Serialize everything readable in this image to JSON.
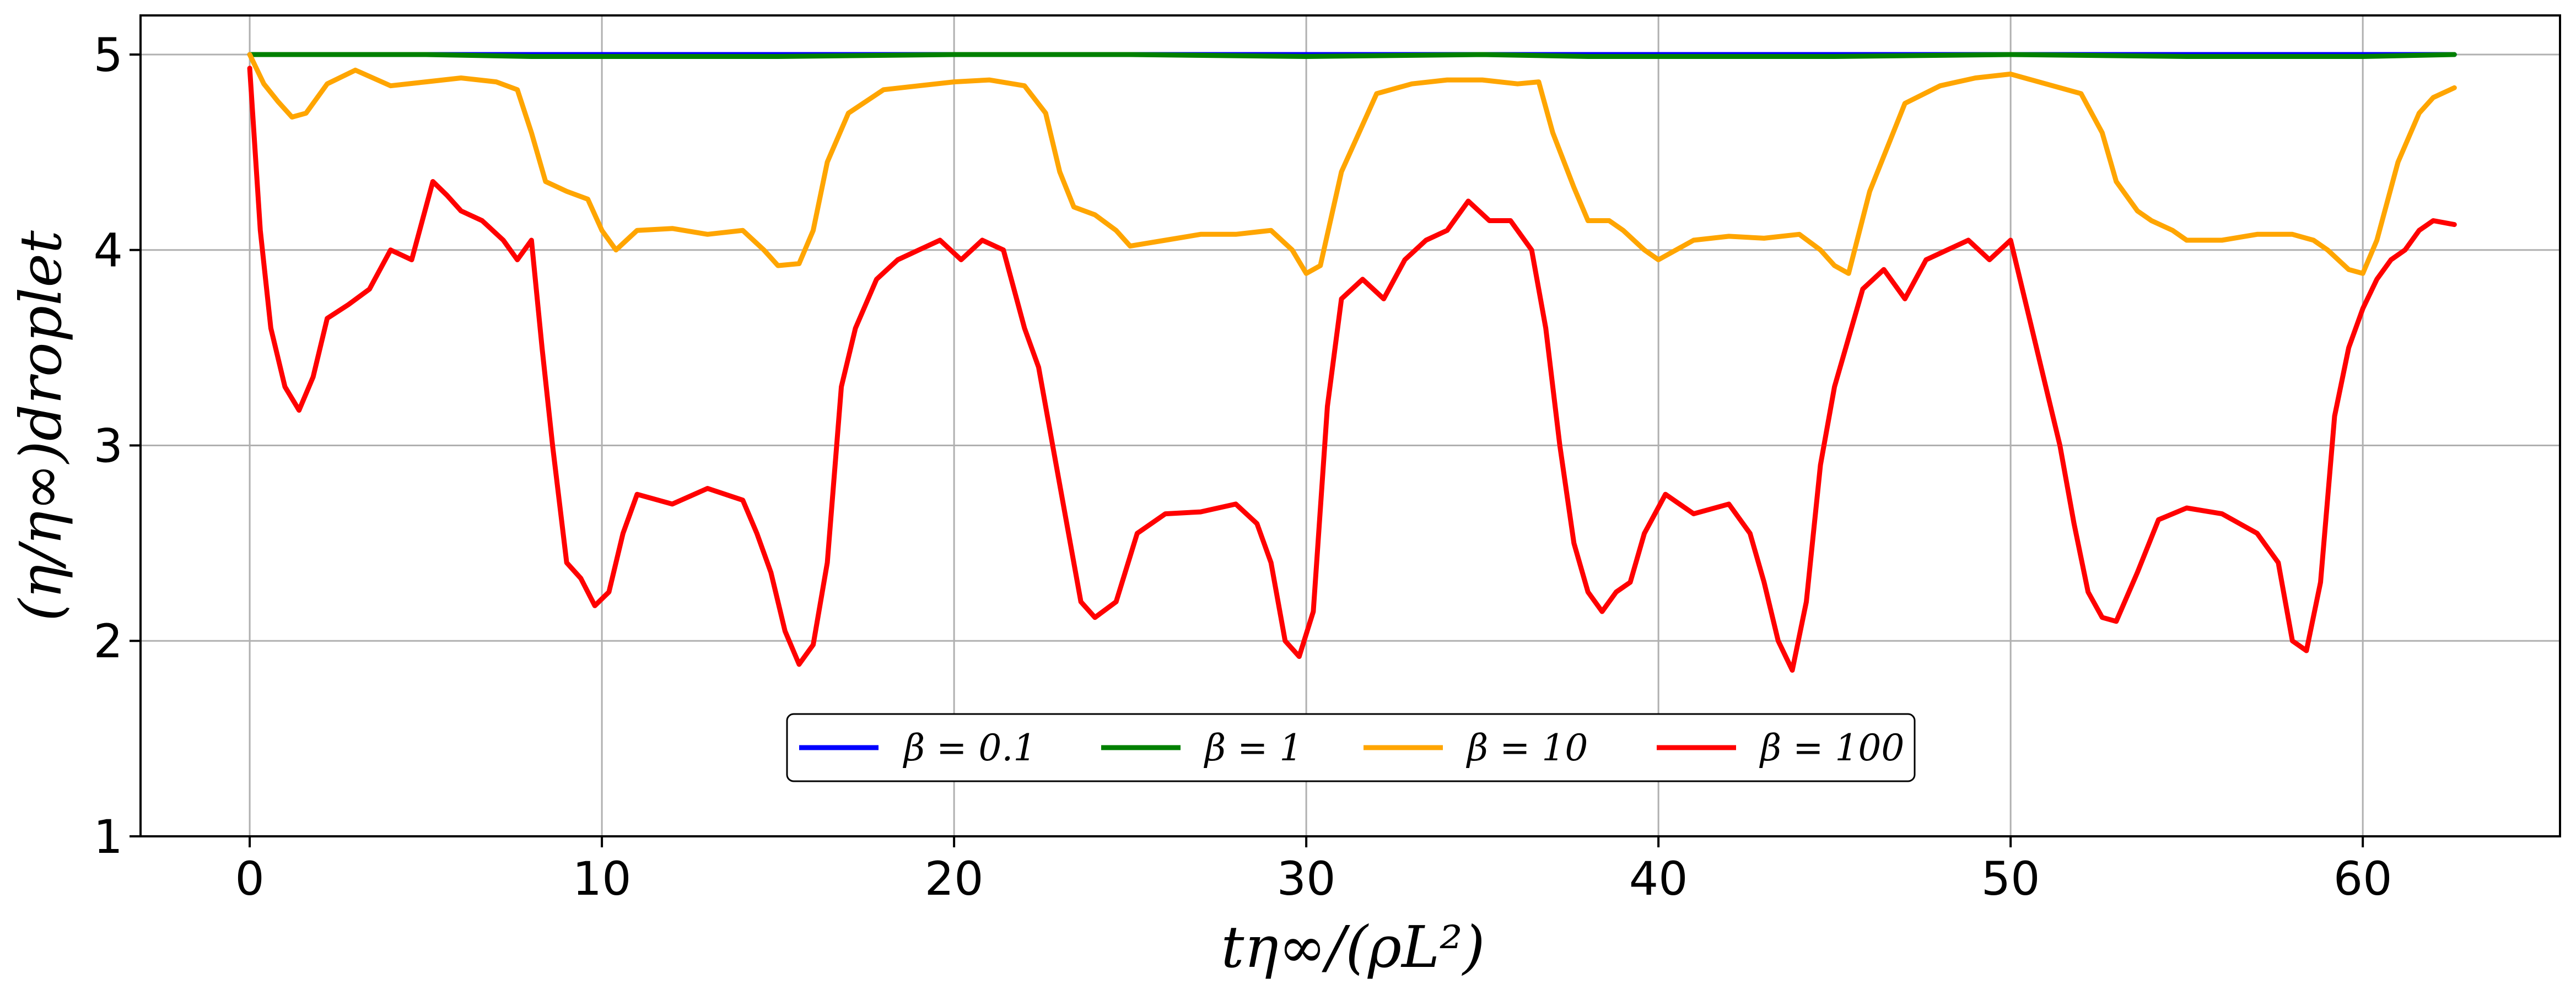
{
  "chart_data": {
    "type": "line",
    "title": "",
    "xlabel": "tη∞/(ρL²)",
    "ylabel": "(η/η∞)droplet",
    "xlim": [
      -3.1,
      65.6
    ],
    "ylim": [
      1,
      5.2
    ],
    "xticks": [
      0,
      10,
      20,
      30,
      40,
      50,
      60
    ],
    "yticks": [
      1,
      2,
      3,
      4,
      5
    ],
    "xtick_labels": [
      "0",
      "10",
      "20",
      "30",
      "40",
      "50",
      "60"
    ],
    "ytick_labels": [
      "1",
      "2",
      "3",
      "4",
      "5"
    ],
    "grid": true,
    "legend_position": "lower-center",
    "series": [
      {
        "name": "β = 0.1",
        "color": "#0000ff",
        "x": [
          0,
          5,
          10,
          15,
          20,
          25,
          30,
          35,
          40,
          45,
          50,
          55,
          60,
          62.6
        ],
        "y": [
          5.0,
          5.0,
          5.0,
          5.0,
          5.0,
          5.0,
          5.0,
          5.0,
          5.0,
          5.0,
          5.0,
          5.0,
          5.0,
          5.0
        ]
      },
      {
        "name": "β = 1",
        "color": "#008000",
        "x": [
          0,
          5,
          8,
          10,
          15,
          20,
          25,
          30,
          35,
          38,
          40,
          45,
          50,
          55,
          60,
          62.6
        ],
        "y": [
          5.0,
          5.0,
          4.99,
          4.99,
          4.99,
          5.0,
          5.0,
          4.99,
          5.0,
          4.99,
          4.99,
          4.99,
          5.0,
          4.99,
          4.99,
          5.0
        ]
      },
      {
        "name": "β = 10",
        "color": "#ffa500",
        "x": [
          0,
          0.4,
          0.8,
          1.2,
          1.6,
          2.2,
          3.0,
          4.0,
          5.0,
          6.0,
          7.0,
          7.6,
          8.0,
          8.4,
          9.0,
          9.6,
          10.0,
          10.4,
          11.0,
          12.0,
          13.0,
          14.0,
          14.6,
          15.0,
          15.6,
          16.0,
          16.4,
          17.0,
          18.0,
          19.0,
          20.0,
          21.0,
          22.0,
          22.6,
          23.0,
          23.4,
          24.0,
          24.6,
          25.0,
          26.0,
          27.0,
          28.0,
          29.0,
          29.6,
          30.0,
          30.4,
          31.0,
          32.0,
          33.0,
          34.0,
          35.0,
          36.0,
          36.6,
          37.0,
          37.6,
          38.0,
          38.6,
          39.0,
          39.6,
          40.0,
          41.0,
          42.0,
          43.0,
          44.0,
          44.6,
          45.0,
          45.4,
          46.0,
          47.0,
          48.0,
          49.0,
          50.0,
          51.0,
          52.0,
          52.6,
          53.0,
          53.6,
          54.0,
          54.6,
          55.0,
          56.0,
          57.0,
          58.0,
          58.6,
          59.0,
          59.6,
          60.0,
          60.4,
          61.0,
          61.6,
          62.0,
          62.6
        ],
        "y": [
          5.0,
          4.85,
          4.76,
          4.68,
          4.7,
          4.85,
          4.92,
          4.84,
          4.86,
          4.88,
          4.86,
          4.82,
          4.6,
          4.35,
          4.3,
          4.26,
          4.1,
          4.0,
          4.1,
          4.11,
          4.08,
          4.1,
          4.0,
          3.92,
          3.93,
          4.1,
          4.45,
          4.7,
          4.82,
          4.84,
          4.86,
          4.87,
          4.84,
          4.7,
          4.4,
          4.22,
          4.18,
          4.1,
          4.02,
          4.05,
          4.08,
          4.08,
          4.1,
          4.0,
          3.88,
          3.92,
          4.4,
          4.8,
          4.85,
          4.87,
          4.87,
          4.85,
          4.86,
          4.6,
          4.32,
          4.15,
          4.15,
          4.1,
          4.0,
          3.95,
          4.05,
          4.07,
          4.06,
          4.08,
          4.0,
          3.92,
          3.88,
          4.3,
          4.75,
          4.84,
          4.88,
          4.9,
          4.85,
          4.8,
          4.6,
          4.35,
          4.2,
          4.15,
          4.1,
          4.05,
          4.05,
          4.08,
          4.08,
          4.05,
          4.0,
          3.9,
          3.88,
          4.05,
          4.45,
          4.7,
          4.78,
          4.83
        ]
      },
      {
        "name": "β = 100",
        "color": "#ff0000",
        "x": [
          0,
          0.3,
          0.6,
          1.0,
          1.4,
          1.8,
          2.2,
          2.8,
          3.4,
          4.0,
          4.6,
          5.2,
          5.6,
          6.0,
          6.6,
          7.2,
          7.6,
          8.0,
          8.3,
          8.6,
          9.0,
          9.4,
          9.8,
          10.2,
          10.6,
          11.0,
          12.0,
          13.0,
          14.0,
          14.4,
          14.8,
          15.2,
          15.6,
          16.0,
          16.4,
          16.8,
          17.2,
          17.8,
          18.4,
          19.0,
          19.6,
          20.2,
          20.8,
          21.4,
          22.0,
          22.4,
          22.8,
          23.2,
          23.6,
          24.0,
          24.6,
          25.2,
          26.0,
          27.0,
          28.0,
          28.6,
          29.0,
          29.4,
          29.8,
          30.2,
          30.6,
          31.0,
          31.6,
          32.2,
          32.8,
          33.4,
          34.0,
          34.6,
          35.2,
          35.8,
          36.4,
          36.8,
          37.2,
          37.6,
          38.0,
          38.4,
          38.8,
          39.2,
          39.6,
          40.2,
          41.0,
          42.0,
          42.6,
          43.0,
          43.4,
          43.8,
          44.2,
          44.6,
          45.0,
          45.4,
          45.8,
          46.4,
          47.0,
          47.6,
          48.2,
          48.8,
          49.4,
          50.0,
          50.6,
          51.0,
          51.4,
          51.8,
          52.2,
          52.6,
          53.0,
          53.6,
          54.2,
          55.0,
          56.0,
          57.0,
          57.6,
          58.0,
          58.4,
          58.8,
          59.2,
          59.6,
          60.0,
          60.4,
          60.8,
          61.2,
          61.6,
          62.0,
          62.6
        ],
        "y": [
          4.93,
          4.1,
          3.6,
          3.3,
          3.18,
          3.35,
          3.65,
          3.72,
          3.8,
          4.0,
          3.95,
          4.35,
          4.28,
          4.2,
          4.15,
          4.05,
          3.95,
          4.05,
          3.5,
          3.0,
          2.4,
          2.32,
          2.18,
          2.25,
          2.55,
          2.75,
          2.7,
          2.78,
          2.72,
          2.55,
          2.35,
          2.05,
          1.88,
          1.98,
          2.4,
          3.3,
          3.6,
          3.85,
          3.95,
          4.0,
          4.05,
          3.95,
          4.05,
          4.0,
          3.6,
          3.4,
          3.0,
          2.6,
          2.2,
          2.12,
          2.2,
          2.55,
          2.65,
          2.66,
          2.7,
          2.6,
          2.4,
          2.0,
          1.92,
          2.15,
          3.2,
          3.75,
          3.85,
          3.75,
          3.95,
          4.05,
          4.1,
          4.25,
          4.15,
          4.15,
          4.0,
          3.6,
          3.0,
          2.5,
          2.25,
          2.15,
          2.25,
          2.3,
          2.55,
          2.75,
          2.65,
          2.7,
          2.55,
          2.3,
          2.0,
          1.85,
          2.2,
          2.9,
          3.3,
          3.55,
          3.8,
          3.9,
          3.75,
          3.95,
          4.0,
          4.05,
          3.95,
          4.05,
          3.6,
          3.3,
          3.0,
          2.6,
          2.25,
          2.12,
          2.1,
          2.35,
          2.62,
          2.68,
          2.65,
          2.55,
          2.4,
          2.0,
          1.95,
          2.3,
          3.15,
          3.5,
          3.7,
          3.85,
          3.95,
          4.0,
          4.1,
          4.15,
          4.13
        ]
      }
    ]
  }
}
